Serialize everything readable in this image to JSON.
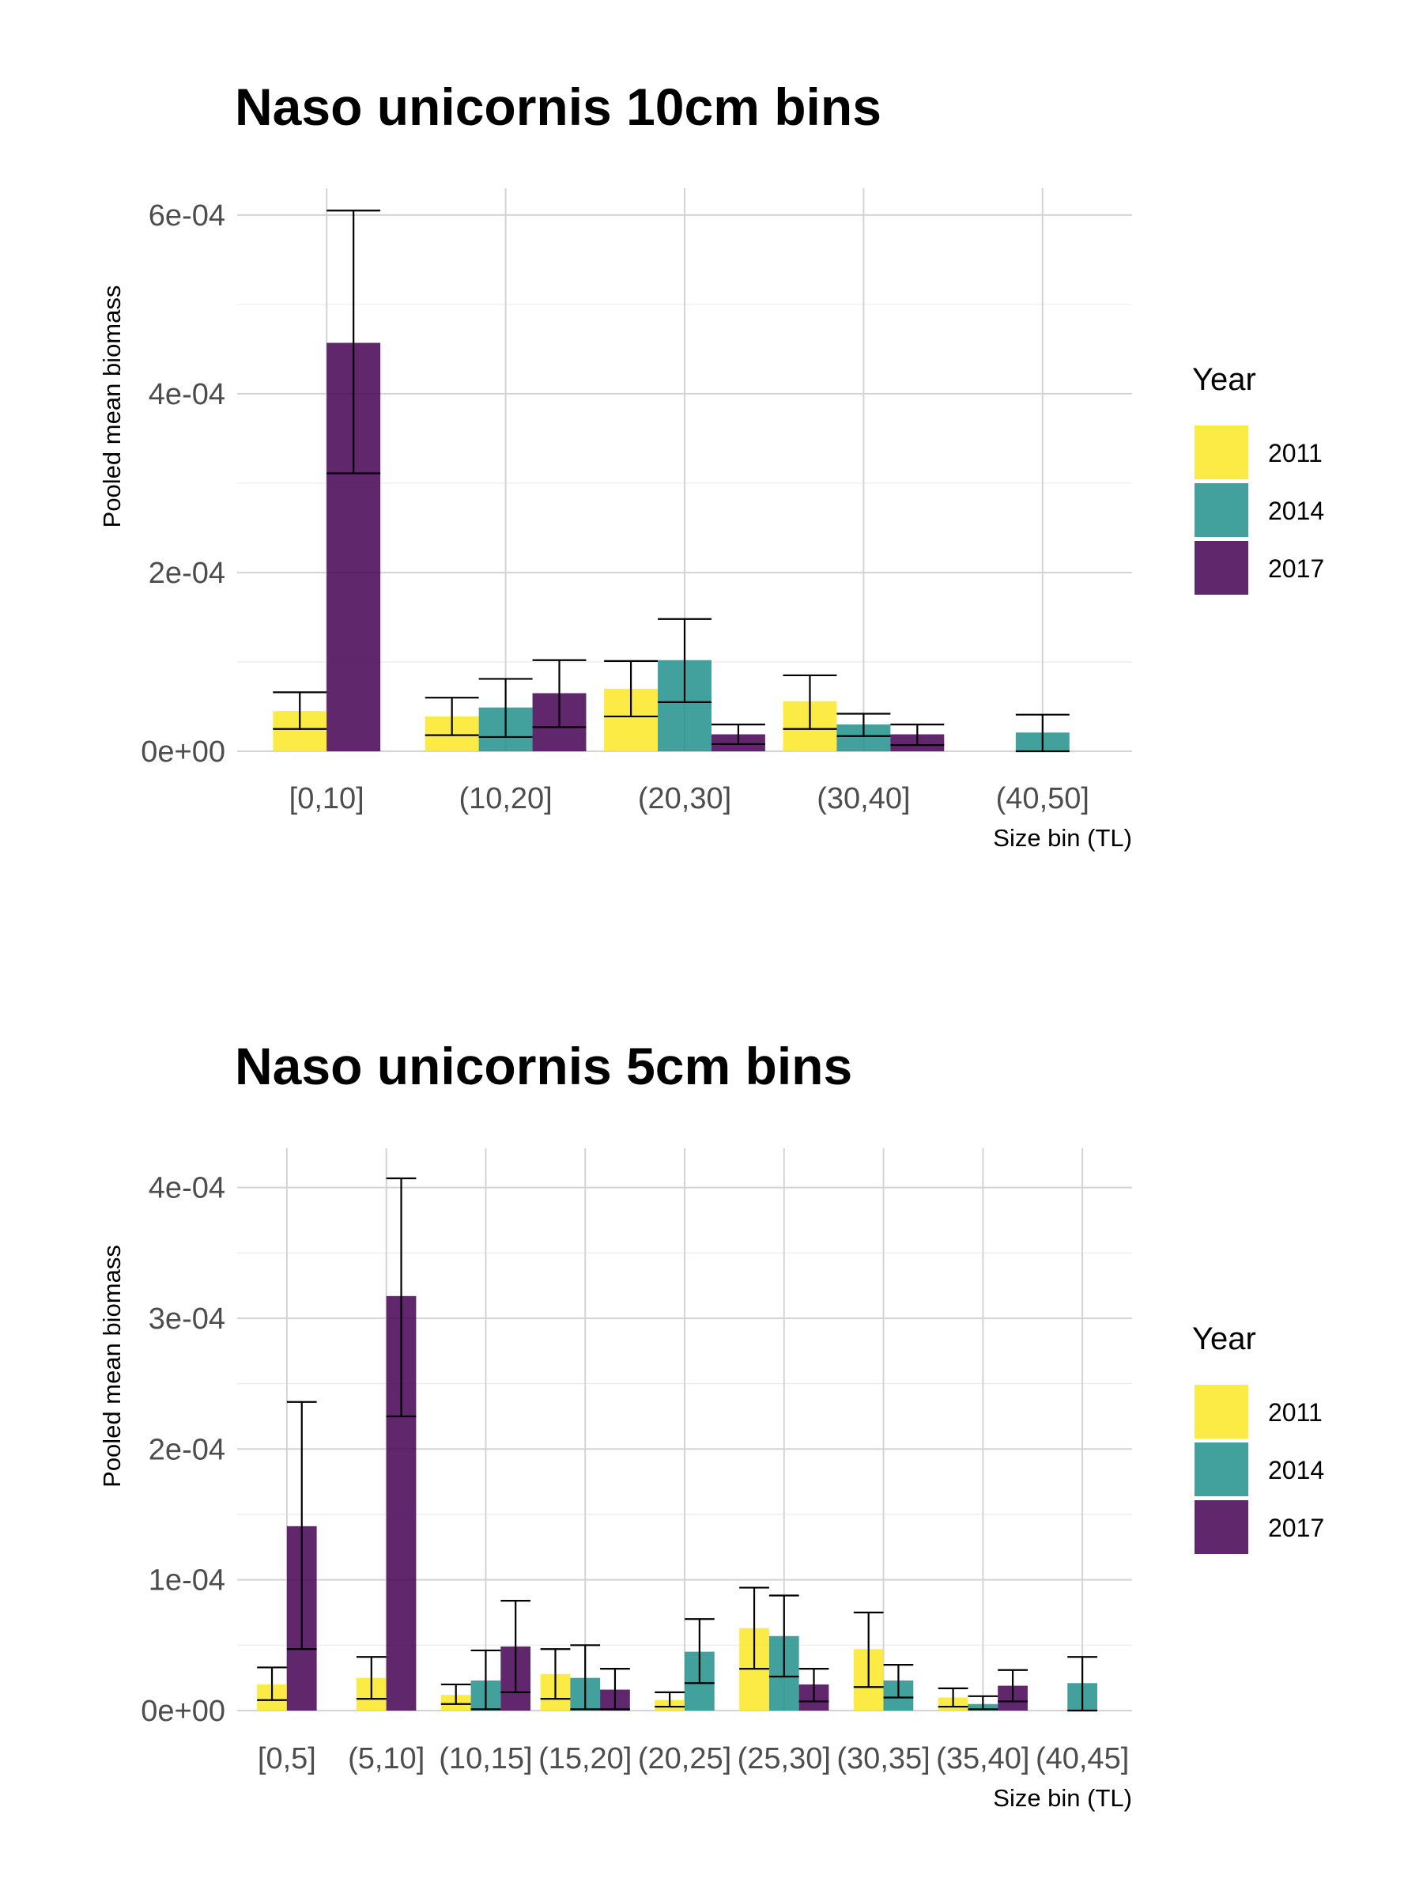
{
  "chart_data": [
    {
      "type": "bar",
      "title": "Naso unicornis 10cm bins",
      "xlabel": "Size bin (TL)",
      "ylabel": "Pooled mean biomass",
      "ylim": [
        0,
        0.00063
      ],
      "yticks": [
        0,
        0.0002,
        0.0004,
        0.0006
      ],
      "yticklabels": [
        "0e+00",
        "2e-04",
        "4e-04",
        "6e-04"
      ],
      "categories": [
        "[0,10]",
        "(10,20]",
        "(20,30]",
        "(30,40]",
        "(40,50]"
      ],
      "legend": {
        "title": "Year",
        "position": "right"
      },
      "grid": true,
      "series": [
        {
          "name": "2011",
          "color": "#FDE725",
          "values": [
            4.5e-05,
            3.9e-05,
            7e-05,
            5.6e-05,
            null
          ],
          "lower": [
            2.5e-05,
            1.8e-05,
            3.9e-05,
            2.5e-05,
            null
          ],
          "upper": [
            6.6e-05,
            6e-05,
            0.000101,
            8.5e-05,
            null
          ]
        },
        {
          "name": "2014",
          "color": "#21908C",
          "values": [
            null,
            4.9e-05,
            0.000102,
            3e-05,
            2.1e-05
          ],
          "lower": [
            null,
            1.6e-05,
            5.5e-05,
            1.7e-05,
            0
          ],
          "upper": [
            null,
            8.1e-05,
            0.000148,
            4.2e-05,
            4.1e-05
          ]
        },
        {
          "name": "2017",
          "color": "#440154",
          "values": [
            0.000457,
            6.5e-05,
            1.9e-05,
            1.9e-05,
            null
          ],
          "lower": [
            0.000311,
            2.7e-05,
            8e-06,
            7e-06,
            null
          ],
          "upper": [
            0.000605,
            0.000102,
            3e-05,
            3e-05,
            null
          ]
        }
      ]
    },
    {
      "type": "bar",
      "title": "Naso unicornis 5cm bins",
      "xlabel": "Size bin (TL)",
      "ylabel": "Pooled mean biomass",
      "ylim": [
        0,
        0.00043
      ],
      "yticks": [
        0,
        0.0001,
        0.0002,
        0.0003,
        0.0004
      ],
      "yticklabels": [
        "0e+00",
        "1e-04",
        "2e-04",
        "3e-04",
        "4e-04"
      ],
      "categories": [
        "[0,5]",
        "(5,10]",
        "(10,15]",
        "(15,20]",
        "(20,25]",
        "(25,30]",
        "(30,35]",
        "(35,40]",
        "(40,45]"
      ],
      "legend": {
        "title": "Year",
        "position": "right"
      },
      "grid": true,
      "series": [
        {
          "name": "2011",
          "color": "#FDE725",
          "values": [
            2e-05,
            2.5e-05,
            1.2e-05,
            2.8e-05,
            8e-06,
            6.3e-05,
            4.7e-05,
            1e-05,
            null
          ],
          "lower": [
            8e-06,
            9e-06,
            5e-06,
            9e-06,
            3e-06,
            3.2e-05,
            1.8e-05,
            3e-06,
            null
          ],
          "upper": [
            3.3e-05,
            4.1e-05,
            2e-05,
            4.7e-05,
            1.4e-05,
            9.4e-05,
            7.5e-05,
            1.7e-05,
            null
          ]
        },
        {
          "name": "2014",
          "color": "#21908C",
          "values": [
            null,
            null,
            2.3e-05,
            2.5e-05,
            4.5e-05,
            5.7e-05,
            2.3e-05,
            5e-06,
            2.1e-05
          ],
          "lower": [
            null,
            null,
            1e-06,
            1e-06,
            2.1e-05,
            2.6e-05,
            1e-05,
            1e-06,
            0
          ],
          "upper": [
            null,
            null,
            4.6e-05,
            5e-05,
            7e-05,
            8.8e-05,
            3.5e-05,
            1.1e-05,
            4.1e-05
          ]
        },
        {
          "name": "2017",
          "color": "#440154",
          "values": [
            0.000141,
            0.000317,
            4.9e-05,
            1.6e-05,
            null,
            2e-05,
            null,
            1.9e-05,
            null
          ],
          "lower": [
            4.7e-05,
            0.000225,
            1.4e-05,
            1e-06,
            null,
            7e-06,
            null,
            7e-06,
            null
          ],
          "upper": [
            0.000236,
            0.000407,
            8.4e-05,
            3.2e-05,
            null,
            3.2e-05,
            null,
            3.1e-05,
            null
          ]
        }
      ]
    }
  ]
}
